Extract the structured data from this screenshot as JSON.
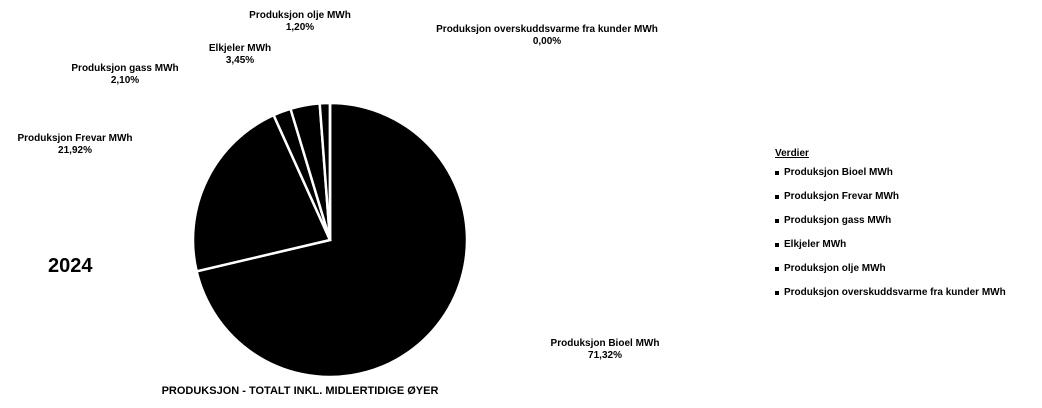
{
  "chart_data": {
    "type": "pie",
    "title": "PRODUKSJON - TOTALT INKL. MIDLERTIDIGE ØYER",
    "annotation": "2024",
    "legend_title": "Verdier",
    "legend": "right",
    "color": "#000000",
    "categories": [
      "Produksjon Bioel MWh",
      "Produksjon Frevar MWh",
      "Produksjon gass MWh",
      "Elkjeler MWh",
      "Produksjon olje MWh",
      "Produksjon overskuddsvarme fra kunder MWh"
    ],
    "values": [
      71.32,
      21.92,
      2.1,
      3.45,
      1.2,
      0.0
    ],
    "value_labels": [
      "71,32%",
      "21,92%",
      "2,10%",
      "3,45%",
      "1,20%",
      "0,00%"
    ]
  }
}
